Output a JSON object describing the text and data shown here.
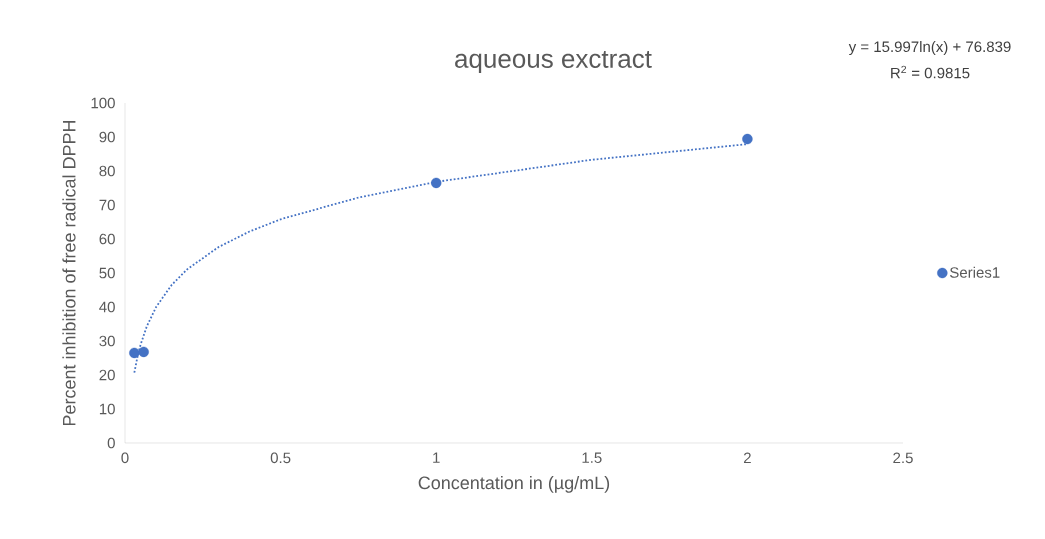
{
  "chart_data": {
    "type": "scatter",
    "title": "aqueous exctract",
    "xlabel": "Concentation in (µg/mL)",
    "ylabel": "Percent inhibition of free radical DPPH",
    "annotations": [
      "y = 15.997ln(x) + 76.839",
      "R$^{2}$ = 0.9815"
    ],
    "series": [
      {
        "name": "Series1",
        "color": "#4472c4",
        "marker": "circle",
        "x": [
          0.03,
          0.06,
          1,
          2
        ],
        "values": [
          26.5,
          26.8,
          76.5,
          89.4
        ]
      },
      {
        "type": "line",
        "color": "#4472c4",
        "line_style": "dotted",
        "marker": "none",
        "x": [
          0.03,
          0.04,
          0.05,
          0.07,
          0.1,
          0.15,
          0.2,
          0.3,
          0.4,
          0.5,
          0.75,
          1,
          1.5,
          2
        ],
        "values": [
          20.7,
          25.3,
          28.9,
          34.3,
          40,
          46.5,
          51.1,
          57.6,
          62.2,
          65.8,
          72.2,
          76.8,
          83.3,
          87.9
        ]
      }
    ],
    "xlim": [
      0,
      2.5
    ],
    "ylim": [
      0,
      100
    ],
    "xticks": [
      0,
      0.5,
      1,
      1.5,
      2,
      2.5
    ],
    "yticks": [
      0,
      10,
      20,
      30,
      40,
      50,
      60,
      70,
      80,
      90,
      100
    ],
    "grid": false,
    "legend": "right"
  }
}
